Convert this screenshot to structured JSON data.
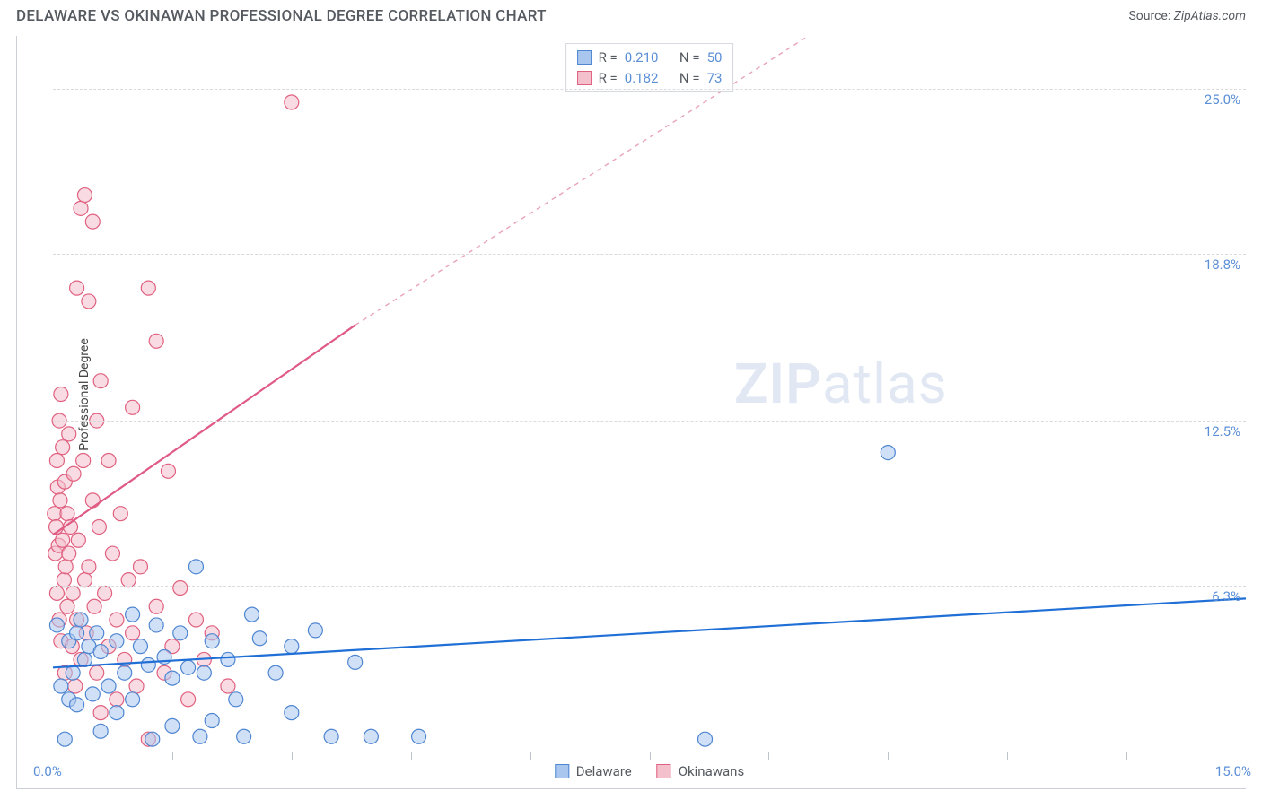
{
  "title": "DELAWARE VS OKINAWAN PROFESSIONAL DEGREE CORRELATION CHART",
  "source_prefix": "Source:",
  "source_name": "ZipAtlas.com",
  "watermark_a": "ZIP",
  "watermark_b": "atlas",
  "chart": {
    "type": "scatter",
    "xlim": [
      0,
      15
    ],
    "ylim": [
      0,
      27
    ],
    "x_start_label": "0.0%",
    "x_end_label": "15.0%",
    "y_ticks": [
      6.3,
      12.5,
      18.8,
      25.0
    ],
    "y_tick_labels": [
      "6.3%",
      "12.5%",
      "18.8%",
      "25.0%"
    ],
    "x_minor_ticks": [
      1.5,
      3.0,
      4.5,
      6.0,
      7.5,
      9.0,
      10.5,
      12.0,
      13.5
    ],
    "ylabel": "Professional Degree",
    "background_color": "#ffffff",
    "grid_color": "#d8dadd",
    "axis_color": "#ccd0d6",
    "tick_label_color": "#5b8fd6",
    "marker_radius": 8,
    "marker_opacity": 0.55,
    "series": {
      "delaware": {
        "label": "Delaware",
        "fill": "#a9c6ef",
        "stroke": "#4f86d1",
        "R": "0.210",
        "N": "50",
        "trend": {
          "x1": 0,
          "y1": 3.2,
          "x2": 15,
          "y2": 5.8,
          "color": "#1f6fd6",
          "width": 2.2,
          "dash": ""
        },
        "points": [
          [
            0.05,
            4.8
          ],
          [
            0.1,
            2.5
          ],
          [
            0.15,
            0.5
          ],
          [
            0.2,
            4.2
          ],
          [
            0.2,
            2.0
          ],
          [
            0.25,
            3.0
          ],
          [
            0.3,
            4.5
          ],
          [
            0.3,
            1.8
          ],
          [
            0.35,
            5.0
          ],
          [
            0.4,
            3.5
          ],
          [
            0.45,
            4.0
          ],
          [
            0.5,
            2.2
          ],
          [
            0.55,
            4.5
          ],
          [
            0.6,
            0.8
          ],
          [
            0.6,
            3.8
          ],
          [
            0.7,
            2.5
          ],
          [
            0.8,
            4.2
          ],
          [
            0.8,
            1.5
          ],
          [
            0.9,
            3.0
          ],
          [
            1.0,
            5.2
          ],
          [
            1.0,
            2.0
          ],
          [
            1.1,
            4.0
          ],
          [
            1.2,
            3.3
          ],
          [
            1.25,
            0.5
          ],
          [
            1.3,
            4.8
          ],
          [
            1.4,
            3.6
          ],
          [
            1.5,
            2.8
          ],
          [
            1.5,
            1.0
          ],
          [
            1.6,
            4.5
          ],
          [
            1.7,
            3.2
          ],
          [
            1.8,
            7.0
          ],
          [
            1.85,
            0.6
          ],
          [
            1.9,
            3.0
          ],
          [
            2.0,
            4.2
          ],
          [
            2.0,
            1.2
          ],
          [
            2.2,
            3.5
          ],
          [
            2.3,
            2.0
          ],
          [
            2.4,
            0.6
          ],
          [
            2.5,
            5.2
          ],
          [
            2.6,
            4.3
          ],
          [
            2.8,
            3.0
          ],
          [
            3.0,
            1.5
          ],
          [
            3.0,
            4.0
          ],
          [
            3.3,
            4.6
          ],
          [
            3.5,
            0.6
          ],
          [
            3.8,
            3.4
          ],
          [
            4.0,
            0.6
          ],
          [
            4.6,
            0.6
          ],
          [
            8.2,
            0.5
          ],
          [
            10.5,
            11.3
          ]
        ]
      },
      "okinawans": {
        "label": "Okinawans",
        "fill": "#f4c0cc",
        "stroke": "#e0607f",
        "R": "0.182",
        "N": "73",
        "trend_solid": {
          "x1": 0,
          "y1": 8.2,
          "x2": 3.8,
          "y2": 16.1,
          "color": "#e05a86",
          "width": 2.2
        },
        "trend_dash": {
          "x1": 3.8,
          "y1": 16.1,
          "x2": 9.5,
          "y2": 27.0,
          "color": "#e8a3b6",
          "width": 1.4
        },
        "points": [
          [
            0.02,
            9.0
          ],
          [
            0.03,
            7.5
          ],
          [
            0.04,
            8.5
          ],
          [
            0.05,
            6.0
          ],
          [
            0.05,
            11.0
          ],
          [
            0.06,
            10.0
          ],
          [
            0.07,
            7.8
          ],
          [
            0.08,
            12.5
          ],
          [
            0.08,
            5.0
          ],
          [
            0.09,
            9.5
          ],
          [
            0.1,
            13.5
          ],
          [
            0.1,
            4.2
          ],
          [
            0.12,
            8.0
          ],
          [
            0.12,
            11.5
          ],
          [
            0.14,
            6.5
          ],
          [
            0.15,
            10.2
          ],
          [
            0.15,
            3.0
          ],
          [
            0.16,
            7.0
          ],
          [
            0.18,
            9.0
          ],
          [
            0.18,
            5.5
          ],
          [
            0.2,
            12.0
          ],
          [
            0.2,
            7.5
          ],
          [
            0.22,
            8.5
          ],
          [
            0.24,
            4.0
          ],
          [
            0.25,
            6.0
          ],
          [
            0.26,
            10.5
          ],
          [
            0.28,
            2.5
          ],
          [
            0.3,
            17.5
          ],
          [
            0.3,
            5.0
          ],
          [
            0.32,
            8.0
          ],
          [
            0.35,
            20.5
          ],
          [
            0.35,
            3.5
          ],
          [
            0.38,
            11.0
          ],
          [
            0.4,
            21.0
          ],
          [
            0.4,
            6.5
          ],
          [
            0.42,
            4.5
          ],
          [
            0.45,
            17.0
          ],
          [
            0.45,
            7.0
          ],
          [
            0.5,
            20.0
          ],
          [
            0.5,
            9.5
          ],
          [
            0.52,
            5.5
          ],
          [
            0.55,
            12.5
          ],
          [
            0.55,
            3.0
          ],
          [
            0.58,
            8.5
          ],
          [
            0.6,
            14.0
          ],
          [
            0.6,
            1.5
          ],
          [
            0.65,
            6.0
          ],
          [
            0.7,
            11.0
          ],
          [
            0.7,
            4.0
          ],
          [
            0.75,
            7.5
          ],
          [
            0.8,
            5.0
          ],
          [
            0.8,
            2.0
          ],
          [
            0.85,
            9.0
          ],
          [
            0.9,
            3.5
          ],
          [
            0.95,
            6.5
          ],
          [
            1.0,
            4.5
          ],
          [
            1.0,
            13.0
          ],
          [
            1.05,
            2.5
          ],
          [
            1.1,
            7.0
          ],
          [
            1.2,
            17.5
          ],
          [
            1.2,
            0.5
          ],
          [
            1.3,
            15.5
          ],
          [
            1.3,
            5.5
          ],
          [
            1.4,
            3.0
          ],
          [
            1.45,
            10.6
          ],
          [
            1.5,
            4.0
          ],
          [
            1.6,
            6.2
          ],
          [
            1.7,
            2.0
          ],
          [
            1.8,
            5.0
          ],
          [
            1.9,
            3.5
          ],
          [
            2.0,
            4.5
          ],
          [
            2.2,
            2.5
          ],
          [
            3.0,
            24.5
          ]
        ]
      }
    }
  },
  "legend_stats": {
    "r_label": "R =",
    "n_label": "N ="
  }
}
